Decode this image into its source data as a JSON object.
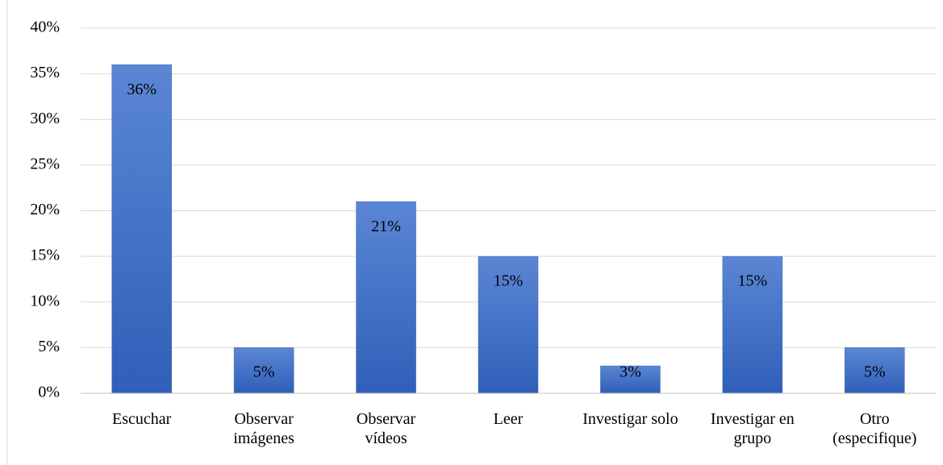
{
  "chart_data": {
    "type": "bar",
    "categories": [
      "Escuchar",
      "Observar imágenes",
      "Observar vídeos",
      "Leer",
      "Investigar solo",
      "Investigar en grupo",
      "Otro (especifique)"
    ],
    "values": [
      36,
      5,
      21,
      15,
      3,
      15,
      5
    ],
    "value_labels": [
      "36%",
      "5%",
      "21%",
      "15%",
      "3%",
      "15%",
      "5%"
    ],
    "color": "#4472c4",
    "ylim": [
      0,
      40
    ],
    "yticks": [
      {
        "value": 0,
        "label": "0%"
      },
      {
        "value": 5,
        "label": "5%"
      },
      {
        "value": 10,
        "label": "10%"
      },
      {
        "value": 15,
        "label": "15%"
      },
      {
        "value": 20,
        "label": "20%"
      },
      {
        "value": 25,
        "label": "25%"
      },
      {
        "value": 30,
        "label": "30%"
      },
      {
        "value": 35,
        "label": "35%"
      },
      {
        "value": 40,
        "label": "40%"
      }
    ],
    "grid": true
  }
}
